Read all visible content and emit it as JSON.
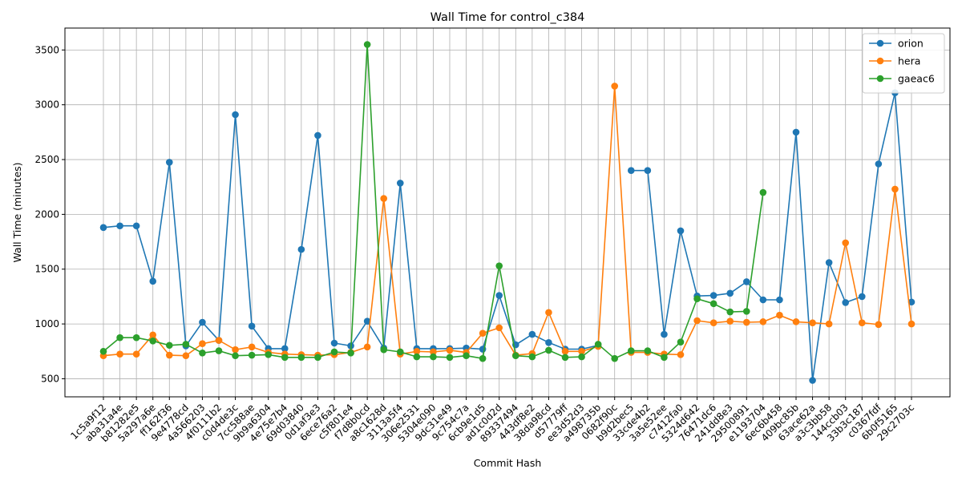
{
  "chart_data": {
    "type": "line",
    "title": "Wall Time for control_c384",
    "xlabel": "Commit Hash",
    "ylabel": "Wall Time (minutes)",
    "ylim": [
      335,
      3700
    ],
    "yticks": [
      500,
      1000,
      1500,
      2000,
      2500,
      3000,
      3500
    ],
    "grid": true,
    "legend_position": "top-right",
    "categories": [
      "1c5a9f12",
      "aba31a4e",
      "b81282e5",
      "5a297a6e",
      "ff162f36",
      "9e4778cd",
      "4a566203",
      "4f0111b2",
      "c0d4de3c",
      "7cc588ae",
      "9b9a6304",
      "4e75e7b4",
      "69d03840",
      "0d1af3e3",
      "6ece76a2",
      "c5f801e4",
      "f7d8b0cd",
      "a8c1628d",
      "3113a5f4",
      "306e2531",
      "5304e090",
      "9dc31e49",
      "9c754c7a",
      "6cb9e1d5",
      "ad1c0d2d",
      "89337494",
      "443df8e2",
      "38da98cd",
      "d57779ff",
      "ee3d52d3",
      "a498735b",
      "0682f90c",
      "b9d2bec5",
      "33cde4b2",
      "3a5e52ee",
      "c7412fa0",
      "5324d642",
      "76471dc6",
      "241dd8e3",
      "29500891",
      "e1193704",
      "6ec6b458",
      "409bc85b",
      "63ace62a",
      "a3c3bb58",
      "144ccb03",
      "33b3c187",
      "c0367fdf",
      "6b0f5165",
      "29c2703c"
    ],
    "series": [
      {
        "name": "orion",
        "color": "#1f77b4",
        "values": [
          1880,
          1895,
          1895,
          1390,
          2475,
          800,
          1015,
          850,
          2910,
          980,
          775,
          775,
          1680,
          2720,
          825,
          800,
          1025,
          780,
          2285,
          775,
          775,
          775,
          780,
          770,
          1260,
          810,
          905,
          830,
          770,
          770,
          805,
          null,
          2400,
          2400,
          905,
          1850,
          1255,
          1260,
          1280,
          1385,
          1220,
          1220,
          2750,
          485,
          1560,
          1195,
          1250,
          2460,
          3110,
          1200
        ]
      },
      {
        "name": "hera",
        "color": "#ff7f0e",
        "values": [
          710,
          725,
          725,
          900,
          715,
          710,
          820,
          850,
          765,
          790,
          740,
          725,
          720,
          715,
          720,
          740,
          790,
          2145,
          725,
          750,
          745,
          760,
          740,
          915,
          965,
          715,
          730,
          1105,
          750,
          750,
          795,
          3170,
          740,
          740,
          725,
          720,
          1030,
          1010,
          1025,
          1015,
          1020,
          1080,
          1020,
          1010,
          1000,
          1740,
          1010,
          995,
          2230,
          1000
        ]
      },
      {
        "name": "gaeac6",
        "color": "#2ca02c",
        "values": [
          750,
          875,
          875,
          845,
          805,
          815,
          735,
          755,
          710,
          715,
          720,
          695,
          695,
          695,
          745,
          735,
          3550,
          765,
          745,
          700,
          700,
          695,
          710,
          685,
          1530,
          710,
          700,
          760,
          695,
          700,
          815,
          685,
          755,
          755,
          695,
          835,
          1230,
          1185,
          1110,
          1115,
          2200,
          null,
          null,
          null,
          null,
          null,
          null,
          null,
          null,
          null
        ]
      }
    ]
  }
}
